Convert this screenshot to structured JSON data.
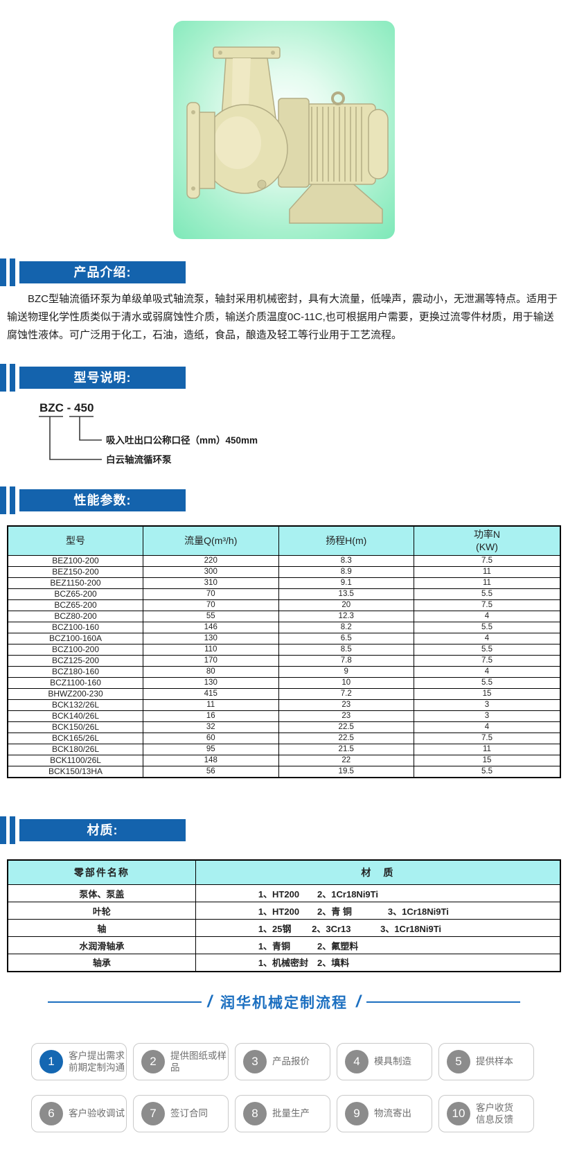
{
  "theme": {
    "accent_blue": "#1463ad",
    "flow_blue": "#1b6fc0",
    "table_header_bg": "#a9f1f1",
    "step_circle_active": "#1467b2",
    "step_circle_inactive": "#8c8c8c"
  },
  "product_image": {
    "name": "BZC型轴流循环泵产品照片"
  },
  "intro": {
    "title": "产品介绍:",
    "body": "BZC型轴流循环泵为单级单吸式轴流泵，轴封采用机械密封，具有大流量，低噪声，震动小，无泄漏等特点。适用于输送物理化学性质类似于清水或弱腐蚀性介质，输送介质温度0C-11C,也可根据用户需要，更换过流零件材质，用于输送腐蚀性液体。可广泛用于化工，石油，造纸，食品，酿造及轻工等行业用于工艺流程。"
  },
  "model": {
    "title": "型号说明:",
    "code": "BZC - 450",
    "callout_diameter": "吸入吐出口公称口径（mm）450mm",
    "callout_series": "白云轴流循环泵"
  },
  "performance": {
    "title": "性能参数:",
    "columns": [
      "型号",
      "流量Q(m³/h)",
      "扬程H(m)",
      "功率N\n(KW)"
    ],
    "rows": [
      [
        "BEZ100-200",
        "220",
        "8.3",
        "7.5"
      ],
      [
        "BEZ150-200",
        "300",
        "8.9",
        "11"
      ],
      [
        "BEZ1150-200",
        "310",
        "9.1",
        "11"
      ],
      [
        "BCZ65-200",
        "70",
        "13.5",
        "5.5"
      ],
      [
        "BCZ65-200",
        "70",
        "20",
        "7.5"
      ],
      [
        "BCZ80-200",
        "55",
        "12.3",
        "4"
      ],
      [
        "BCZ100-160",
        "146",
        "8.2",
        "5.5"
      ],
      [
        "BCZ100-160A",
        "130",
        "6.5",
        "4"
      ],
      [
        "BCZ100-200",
        "110",
        "8.5",
        "5.5"
      ],
      [
        "BCZ125-200",
        "170",
        "7.8",
        "7.5"
      ],
      [
        "BCZ180-160",
        "80",
        "9",
        "4"
      ],
      [
        "BCZ1100-160",
        "130",
        "10",
        "5.5"
      ],
      [
        "BHWZ200-230",
        "415",
        "7.2",
        "15"
      ],
      [
        "BCK132/26L",
        "11",
        "23",
        "3"
      ],
      [
        "BCK140/26L",
        "16",
        "23",
        "3"
      ],
      [
        "BCK150/26L",
        "32",
        "22.5",
        "4"
      ],
      [
        "BCK165/26L",
        "60",
        "22.5",
        "7.5"
      ],
      [
        "BCK180/26L",
        "95",
        "21.5",
        "11"
      ],
      [
        "BCK1100/26L",
        "148",
        "22",
        "15"
      ],
      [
        "BCK150/13HA",
        "56",
        "19.5",
        "5.5"
      ]
    ]
  },
  "materials": {
    "title": "材质:",
    "columns": [
      "零部件名称",
      "材　质"
    ],
    "rows": [
      [
        "泵体、泵盖",
        "1、HT200　　2、1Cr18Ni9Ti"
      ],
      [
        "叶轮",
        "1、HT200　　2、青 铜　　　　3、1Cr18Ni9Ti"
      ],
      [
        "轴",
        "1、25钢　　 2、3Cr13　　　 3、1Cr18Ni9Ti"
      ],
      [
        "水润滑轴承",
        "1、青铜　　　2、氟塑料"
      ],
      [
        "轴承",
        "1、机械密封　2、填料"
      ]
    ]
  },
  "process": {
    "title": "润华机械定制流程",
    "slash_left": "/",
    "slash_right": "/",
    "steps": [
      {
        "num": "1",
        "label": "客户提出需求\n前期定制沟通"
      },
      {
        "num": "2",
        "label": "提供图纸或样\n品"
      },
      {
        "num": "3",
        "label": "产品报价"
      },
      {
        "num": "4",
        "label": "模具制造"
      },
      {
        "num": "5",
        "label": "提供样本"
      },
      {
        "num": "6",
        "label": "客户验收调试"
      },
      {
        "num": "7",
        "label": "签订合同"
      },
      {
        "num": "8",
        "label": "批量生产"
      },
      {
        "num": "9",
        "label": "物流寄出"
      },
      {
        "num": "10",
        "label": "客户收货\n信息反馈"
      }
    ]
  }
}
